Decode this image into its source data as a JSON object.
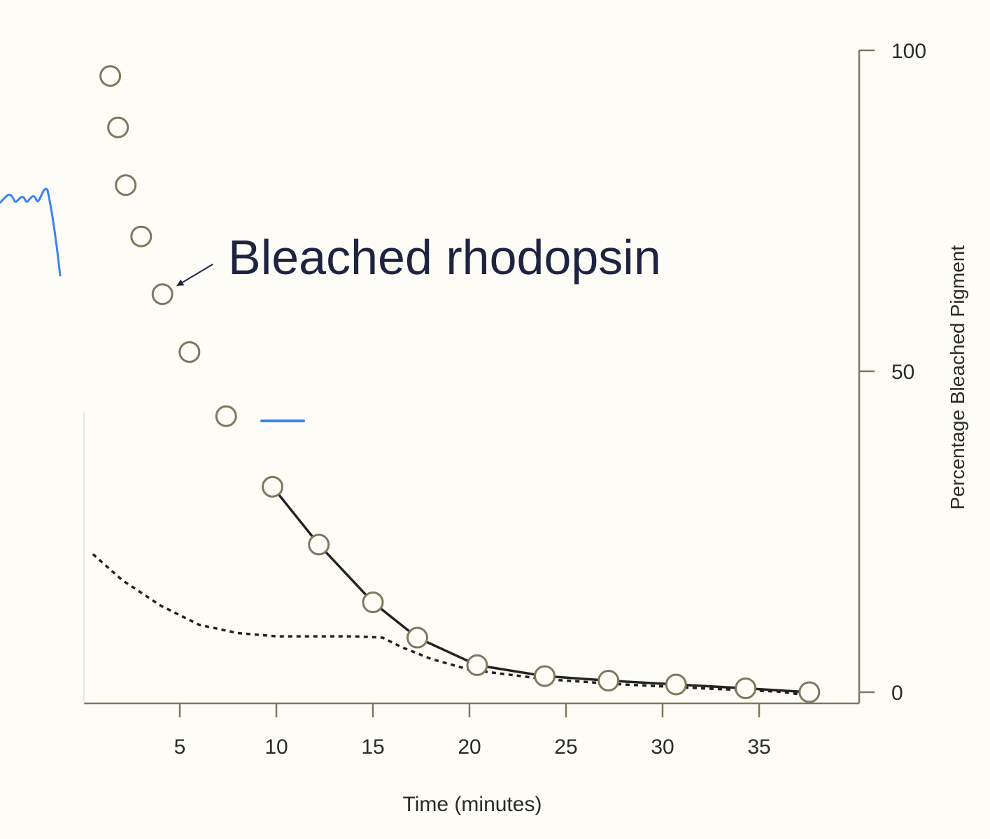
{
  "chart_data": {
    "type": "scatter",
    "title": "",
    "annotation": "Bleached rhodopsin",
    "xlabel": "Time (minutes)",
    "ylabel": "Percentage Bleached Pigment",
    "y_axis_side": "right",
    "xlim": [
      0,
      40
    ],
    "ylim": [
      0,
      100
    ],
    "x_ticks": [
      5,
      10,
      15,
      20,
      25,
      30,
      35
    ],
    "y_ticks": [
      0,
      50,
      100
    ],
    "grid": false,
    "series": [
      {
        "style": "open-circles",
        "x": [
          1.4,
          1.8,
          2.2,
          3.0,
          4.1,
          5.5,
          7.4,
          9.8,
          12.2,
          15.0,
          17.3,
          20.4,
          23.9,
          27.2,
          30.7,
          34.3,
          37.6
        ],
        "y": [
          96,
          88,
          79,
          71,
          62,
          53,
          43,
          32,
          23,
          14,
          8.5,
          4.2,
          2.5,
          1.8,
          1.2,
          0.6,
          0.0
        ]
      },
      {
        "style": "solid-line",
        "x": [
          9.8,
          12.2,
          15.0,
          17.3,
          20.4,
          23.9,
          27.2,
          30.7,
          34.3,
          37.6
        ],
        "y": [
          32,
          23,
          14,
          8.5,
          4.2,
          2.5,
          1.8,
          1.2,
          0.6,
          0.0
        ]
      },
      {
        "style": "dotted-line",
        "x": [
          0.5,
          2,
          4,
          6,
          8,
          10,
          12,
          14,
          15.5,
          16.5,
          18,
          20,
          24,
          28,
          32,
          36,
          37.6
        ],
        "y": [
          21.5,
          17.5,
          13.5,
          10.5,
          9.2,
          8.7,
          8.7,
          8.7,
          8.5,
          7,
          5.2,
          3.5,
          2,
          1.2,
          0.6,
          0.1,
          -0.5
        ]
      }
    ],
    "colors": {
      "background": "#fdfcf7",
      "axis": "#7a7a5c",
      "marker": "#7a7a5c",
      "curve": "#222222",
      "annotation_text": "#1e2440",
      "pen_ink": "#3b82f6"
    }
  }
}
